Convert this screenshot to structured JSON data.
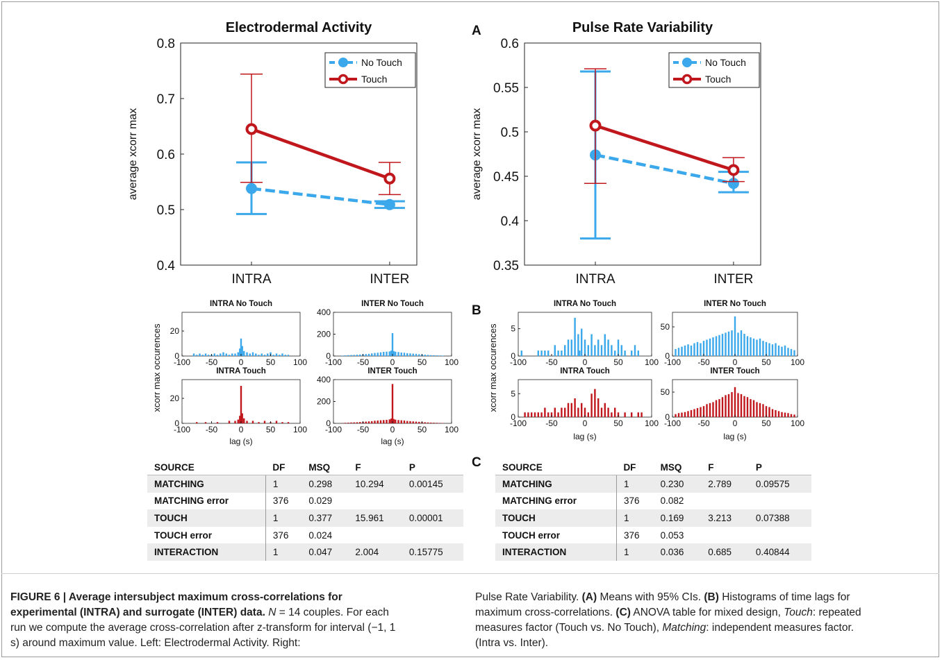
{
  "panel_labels": {
    "a": "A",
    "b": "B",
    "c": "C"
  },
  "chart_data": [
    {
      "type": "line",
      "title": "Electrodermal Activity",
      "ylabel": "average xcorr max",
      "categories": [
        "INTRA",
        "INTER"
      ],
      "ylim": [
        0.4,
        0.8
      ],
      "yticks": [
        "0.4",
        "0.5",
        "0.6",
        "0.7",
        "0.8"
      ],
      "legend_position": "top-right",
      "series": [
        {
          "name": "No Touch",
          "color": "#3aa8ea",
          "values": [
            0.538,
            0.509
          ],
          "ci_low": [
            0.492,
            0.503
          ],
          "ci_high": [
            0.585,
            0.515
          ]
        },
        {
          "name": "Touch",
          "color": "#c0171d",
          "values": [
            0.645,
            0.556
          ],
          "ci_low": [
            0.549,
            0.527
          ],
          "ci_high": [
            0.744,
            0.585
          ]
        }
      ]
    },
    {
      "type": "line",
      "title": "Pulse Rate Variability",
      "ylabel": "average xcorr max",
      "categories": [
        "INTRA",
        "INTER"
      ],
      "ylim": [
        0.35,
        0.6
      ],
      "yticks": [
        "0.35",
        "0.4",
        "0.45",
        "0.5",
        "0.55",
        "0.6"
      ],
      "legend_position": "top-right",
      "series": [
        {
          "name": "No Touch",
          "color": "#3aa8ea",
          "values": [
            0.474,
            0.442
          ],
          "ci_low": [
            0.38,
            0.432
          ],
          "ci_high": [
            0.568,
            0.455
          ]
        },
        {
          "name": "Touch",
          "color": "#c0171d",
          "values": [
            0.507,
            0.457
          ],
          "ci_low": [
            0.442,
            0.444
          ],
          "ci_high": [
            0.571,
            0.471
          ]
        }
      ]
    },
    {
      "type": "bar",
      "title": "INTRA No Touch",
      "color": "#3aa8ea",
      "xlim": [
        -100,
        100
      ],
      "ylim": [
        0,
        35
      ],
      "yticks": [
        "0",
        "20"
      ],
      "xticks": [
        "-100",
        "-50",
        "0",
        "50",
        "100"
      ],
      "x": [
        -80,
        -75,
        -70,
        -65,
        -60,
        -55,
        -50,
        -45,
        -40,
        -35,
        -30,
        -25,
        -20,
        -15,
        -10,
        -5,
        -2,
        0,
        2,
        5,
        10,
        15,
        20,
        25,
        30,
        35,
        40,
        45,
        50,
        55,
        60,
        65,
        70,
        75,
        80
      ],
      "values": [
        2,
        1,
        2,
        1,
        2,
        1,
        1,
        2,
        1,
        2,
        3,
        2,
        1,
        2,
        2,
        3,
        6,
        14,
        8,
        4,
        3,
        2,
        3,
        2,
        1,
        2,
        1,
        2,
        3,
        1,
        2,
        1,
        2,
        1,
        1
      ]
    },
    {
      "type": "bar",
      "title": "INTER No Touch",
      "color": "#3aa8ea",
      "xlim": [
        -100,
        100
      ],
      "ylim": [
        0,
        400
      ],
      "yticks": [
        "0",
        "200",
        "400"
      ],
      "xticks": [
        "-100",
        "-50",
        "0",
        "50",
        "100"
      ],
      "x": [
        -85,
        -80,
        -75,
        -70,
        -65,
        -60,
        -55,
        -50,
        -45,
        -40,
        -35,
        -30,
        -25,
        -20,
        -15,
        -10,
        -5,
        -2,
        0,
        2,
        5,
        10,
        15,
        20,
        25,
        30,
        35,
        40,
        45,
        50,
        55,
        60,
        65,
        70,
        75,
        80,
        85
      ],
      "values": [
        4,
        6,
        8,
        9,
        10,
        12,
        14,
        16,
        18,
        20,
        24,
        28,
        30,
        34,
        38,
        40,
        42,
        50,
        210,
        46,
        40,
        36,
        32,
        30,
        26,
        24,
        22,
        20,
        16,
        14,
        12,
        10,
        8,
        7,
        6,
        5,
        4
      ]
    },
    {
      "type": "bar",
      "title": "INTRA Touch",
      "color": "#c0171d",
      "xlim": [
        -100,
        100
      ],
      "ylim": [
        0,
        35
      ],
      "yticks": [
        "0",
        "20"
      ],
      "xticks": [
        "-100",
        "-50",
        "0",
        "50",
        "100"
      ],
      "x": [
        -75,
        -60,
        -40,
        -20,
        -10,
        -5,
        -2,
        0,
        2,
        5,
        10,
        20,
        30,
        40,
        50,
        60,
        70,
        80
      ],
      "values": [
        1,
        1,
        1,
        2,
        2,
        3,
        6,
        30,
        8,
        4,
        2,
        2,
        1,
        2,
        1,
        2,
        1,
        1
      ]
    },
    {
      "type": "bar",
      "title": "INTER Touch",
      "color": "#c0171d",
      "xlim": [
        -100,
        100
      ],
      "ylim": [
        0,
        400
      ],
      "yticks": [
        "0",
        "200",
        "400"
      ],
      "xticks": [
        "-100",
        "-50",
        "0",
        "50",
        "100"
      ],
      "x": [
        -85,
        -80,
        -75,
        -70,
        -65,
        -60,
        -55,
        -50,
        -45,
        -40,
        -35,
        -30,
        -25,
        -20,
        -15,
        -10,
        -5,
        -2,
        0,
        2,
        5,
        10,
        15,
        20,
        25,
        30,
        35,
        40,
        45,
        50,
        55,
        60,
        65,
        70,
        75,
        80,
        85
      ],
      "values": [
        3,
        5,
        6,
        8,
        9,
        10,
        12,
        14,
        16,
        18,
        20,
        24,
        26,
        28,
        30,
        32,
        36,
        44,
        360,
        40,
        34,
        30,
        28,
        26,
        22,
        20,
        18,
        16,
        14,
        12,
        10,
        8,
        7,
        6,
        5,
        4,
        3
      ]
    },
    {
      "type": "bar",
      "title": "INTRA No Touch",
      "color": "#3aa8ea",
      "xlim": [
        -100,
        100
      ],
      "ylim": [
        0,
        8
      ],
      "yticks": [
        "0",
        "5"
      ],
      "xticks": [
        "-100",
        "-50",
        "0",
        "50",
        "100"
      ],
      "x": [
        -95,
        -70,
        -65,
        -60,
        -55,
        -45,
        -40,
        -35,
        -30,
        -25,
        -20,
        -15,
        -10,
        -8,
        -5,
        0,
        5,
        10,
        15,
        20,
        25,
        30,
        35,
        40,
        45,
        50,
        55,
        60,
        70,
        75,
        80
      ],
      "values": [
        1,
        1,
        1,
        1,
        1,
        2,
        1,
        1,
        2,
        3,
        3,
        7,
        4,
        1,
        5,
        3,
        2,
        4,
        2,
        3,
        2,
        4,
        3,
        2,
        1,
        3,
        2,
        1,
        1,
        2,
        1
      ]
    },
    {
      "type": "bar",
      "title": "INTER No Touch",
      "color": "#3aa8ea",
      "xlim": [
        -100,
        100
      ],
      "ylim": [
        0,
        75
      ],
      "yticks": [
        "0",
        "50"
      ],
      "xticks": [
        "-100",
        "-50",
        "0",
        "50",
        "100"
      ],
      "x": [
        -95,
        -90,
        -85,
        -80,
        -75,
        -70,
        -65,
        -60,
        -55,
        -50,
        -45,
        -40,
        -35,
        -30,
        -25,
        -20,
        -15,
        -10,
        -5,
        0,
        5,
        10,
        15,
        20,
        25,
        30,
        35,
        40,
        45,
        50,
        55,
        60,
        65,
        70,
        75,
        80,
        85,
        90,
        95
      ],
      "values": [
        12,
        14,
        16,
        18,
        20,
        18,
        22,
        24,
        22,
        26,
        28,
        30,
        32,
        34,
        36,
        38,
        40,
        42,
        44,
        68,
        40,
        44,
        38,
        34,
        32,
        30,
        28,
        30,
        26,
        24,
        22,
        20,
        22,
        18,
        16,
        18,
        14,
        12,
        10
      ]
    },
    {
      "type": "bar",
      "title": "INTRA Touch",
      "color": "#c0171d",
      "xlim": [
        -100,
        100
      ],
      "ylim": [
        0,
        8
      ],
      "yticks": [
        "0",
        "5"
      ],
      "xticks": [
        "-100",
        "-50",
        "0",
        "50",
        "100"
      ],
      "x": [
        -90,
        -85,
        -80,
        -75,
        -70,
        -65,
        -60,
        -55,
        -50,
        -45,
        -40,
        -35,
        -30,
        -25,
        -20,
        -15,
        -10,
        -5,
        0,
        5,
        10,
        15,
        20,
        25,
        30,
        35,
        40,
        45,
        50,
        60,
        70,
        80,
        85
      ],
      "values": [
        1,
        1,
        1,
        1,
        1,
        1,
        2,
        1,
        1,
        2,
        1,
        2,
        2,
        3,
        3,
        4,
        2,
        3,
        2,
        1,
        5,
        6,
        4,
        2,
        3,
        2,
        1,
        2,
        1,
        1,
        1,
        1,
        1
      ]
    },
    {
      "type": "bar",
      "title": "INTER Touch",
      "color": "#c0171d",
      "xlim": [
        -100,
        100
      ],
      "ylim": [
        0,
        75
      ],
      "yticks": [
        "0",
        "50"
      ],
      "xticks": [
        "-100",
        "-50",
        "0",
        "50",
        "100"
      ],
      "x": [
        -95,
        -90,
        -85,
        -80,
        -75,
        -70,
        -65,
        -60,
        -55,
        -50,
        -45,
        -40,
        -35,
        -30,
        -25,
        -20,
        -15,
        -10,
        -5,
        0,
        5,
        10,
        15,
        20,
        25,
        30,
        35,
        40,
        45,
        50,
        55,
        60,
        65,
        70,
        75,
        80,
        85,
        90,
        95
      ],
      "values": [
        6,
        8,
        9,
        10,
        12,
        14,
        16,
        18,
        20,
        22,
        26,
        28,
        30,
        34,
        36,
        40,
        44,
        46,
        50,
        60,
        48,
        46,
        42,
        40,
        36,
        34,
        30,
        28,
        26,
        22,
        20,
        16,
        14,
        12,
        10,
        9,
        8,
        6,
        5
      ]
    }
  ],
  "shared_labels": {
    "hist_ylabel": "xcorr max occurences",
    "hist_xlabel": "lag (s)"
  },
  "anova": {
    "headers": [
      "SOURCE",
      "DF",
      "MSQ",
      "F",
      "P"
    ],
    "left": [
      [
        "MATCHING",
        "1",
        "0.298",
        "10.294",
        "0.00145"
      ],
      [
        "MATCHING error",
        "376",
        "0.029",
        "",
        ""
      ],
      [
        "TOUCH",
        "1",
        "0.377",
        "15.961",
        "0.00001"
      ],
      [
        "TOUCH error",
        "376",
        "0.024",
        "",
        ""
      ],
      [
        "INTERACTION",
        "1",
        "0.047",
        "2.004",
        "0.15775"
      ]
    ],
    "right": [
      [
        "MATCHING",
        "1",
        "0.230",
        "2.789",
        "0.09575"
      ],
      [
        "MATCHING error",
        "376",
        "0.082",
        "",
        ""
      ],
      [
        "TOUCH",
        "1",
        "0.169",
        "3.213",
        "0.07388"
      ],
      [
        "TOUCH error",
        "376",
        "0.053",
        "",
        ""
      ],
      [
        "INTERACTION",
        "1",
        "0.036",
        "0.685",
        "0.40844"
      ]
    ]
  },
  "caption": {
    "title": "FIGURE 6 | Average intersubject maximum cross-correlations for experimental (INTRA) and surrogate (INTER) data.",
    "n_text": "N",
    "body_left": "= 14 couples. For each run we compute the average cross-correlation after z-transform for interval (−1, 1 s) around maximum value. Left: Electrodermal Activity. Right:",
    "body_right": [
      {
        "t": "Pulse Rate Variability. ",
        "s": "n"
      },
      {
        "t": "(A)",
        "s": "b"
      },
      {
        "t": " Means with 95% CIs. ",
        "s": "n"
      },
      {
        "t": "(B)",
        "s": "b"
      },
      {
        "t": " Histograms of time lags for maximum cross-correlations. ",
        "s": "n"
      },
      {
        "t": "(C)",
        "s": "b"
      },
      {
        "t": " ANOVA table for mixed design, ",
        "s": "n"
      },
      {
        "t": "Touch",
        "s": "i"
      },
      {
        "t": ": repeated measures factor (Touch vs. No Touch), ",
        "s": "n"
      },
      {
        "t": "Matching",
        "s": "i"
      },
      {
        "t": ": independent measures factor. (Intra vs. Inter).",
        "s": "n"
      }
    ]
  }
}
